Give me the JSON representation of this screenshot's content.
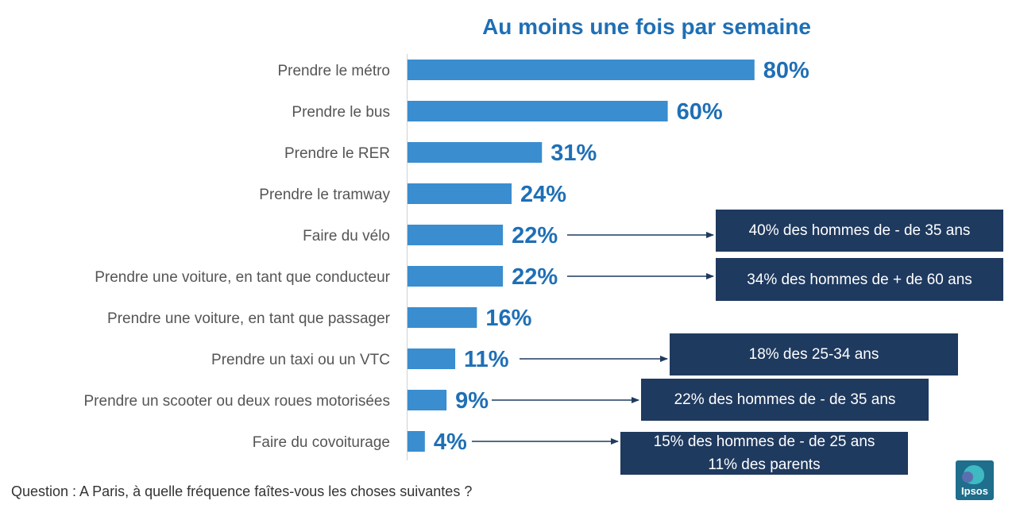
{
  "chart_data": {
    "type": "bar",
    "orientation": "horizontal",
    "title": "Au moins une fois par semaine",
    "categories": [
      "Prendre le métro",
      "Prendre le bus",
      "Prendre le RER",
      "Prendre le tramway",
      "Faire du vélo",
      "Prendre une voiture, en tant que conducteur",
      "Prendre une voiture, en tant que passager",
      "Prendre un taxi ou un VTC",
      "Prendre un scooter ou deux roues motorisées",
      "Faire du covoiturage"
    ],
    "values": [
      80,
      60,
      31,
      24,
      22,
      22,
      16,
      11,
      9,
      4
    ],
    "value_labels": [
      "80%",
      "60%",
      "31%",
      "24%",
      "22%",
      "22%",
      "16%",
      "11%",
      "9%",
      "4%"
    ],
    "xlim": [
      0,
      100
    ],
    "grid": false,
    "bar_color": "#3A8DCF",
    "annotations": [
      {
        "category_index": 4,
        "lines": [
          "40% des hommes de - de 35 ans"
        ]
      },
      {
        "category_index": 5,
        "lines": [
          "34% des hommes de + de 60 ans"
        ]
      },
      {
        "category_index": 7,
        "lines": [
          "18% des 25-34 ans"
        ]
      },
      {
        "category_index": 8,
        "lines": [
          "22% des hommes de - de 35 ans"
        ]
      },
      {
        "category_index": 9,
        "lines": [
          "15% des hommes de - de 25 ans",
          "11% des parents"
        ]
      }
    ]
  },
  "footer": {
    "question": "Question : A Paris, à quelle fréquence faîtes-vous les choses suivantes ?",
    "logo_text": "Ipsos"
  },
  "colors": {
    "title": "#1F6FB5",
    "value_label": "#1F6FB5",
    "callout_bg": "#1F3A5F",
    "arrow": "#1F3A5F"
  }
}
